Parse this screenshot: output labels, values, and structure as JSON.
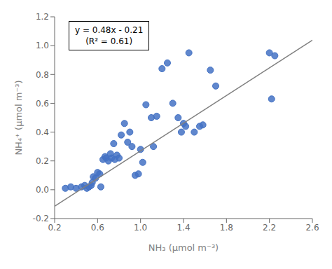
{
  "chart_data": {
    "type": "scatter",
    "xlabel": "NH₃ (μmol m⁻³)",
    "ylabel": "NH₄⁺ (μmol m⁻³)",
    "xlim": [
      0.2,
      2.6
    ],
    "ylim": [
      -0.2,
      1.2
    ],
    "xticks": [
      0.2,
      0.6,
      {
        "value": 1,
        "label": "1.0"
      },
      1.4,
      1.8,
      2.2,
      2.6
    ],
    "yticks": [
      -0.2,
      {
        "value": 0,
        "label": "0.0"
      },
      0.2,
      0.4,
      0.6,
      0.8,
      {
        "value": 1,
        "label": "1.0"
      },
      1.2
    ],
    "grid": false,
    "annotations": [
      "y = 0.48x - 0.21",
      "(R² = 0.61)"
    ],
    "series": [
      {
        "type": "scatter",
        "color": "#4472C4",
        "marker": "circle",
        "x": [
          0.3,
          0.35,
          0.4,
          0.45,
          0.48,
          0.5,
          0.52,
          0.54,
          0.55,
          0.56,
          0.58,
          0.6,
          0.62,
          0.63,
          0.65,
          0.67,
          0.68,
          0.7,
          0.72,
          0.73,
          0.75,
          0.76,
          0.78,
          0.8,
          0.82,
          0.85,
          0.88,
          0.9,
          0.92,
          0.95,
          0.98,
          1.0,
          1.02,
          1.05,
          1.1,
          1.12,
          1.15,
          1.2,
          1.25,
          1.3,
          1.35,
          1.38,
          1.4,
          1.42,
          1.45,
          1.5,
          1.55,
          1.58,
          1.65,
          1.7,
          2.2,
          2.22,
          2.25
        ],
        "values": [
          0.01,
          0.02,
          0.01,
          0.02,
          0.03,
          0.01,
          0.02,
          0.03,
          0.05,
          0.09,
          0.08,
          0.12,
          0.11,
          0.02,
          0.21,
          0.23,
          0.22,
          0.2,
          0.25,
          0.22,
          0.32,
          0.21,
          0.24,
          0.22,
          0.38,
          0.46,
          0.33,
          0.4,
          0.3,
          0.1,
          0.11,
          0.28,
          0.19,
          0.59,
          0.5,
          0.3,
          0.51,
          0.84,
          0.88,
          0.6,
          0.5,
          0.4,
          0.46,
          0.44,
          0.95,
          0.4,
          0.44,
          0.45,
          0.83,
          0.72,
          0.95,
          0.63,
          0.93
        ]
      },
      {
        "type": "line",
        "color": "#808080",
        "line_style": "solid",
        "x": [
          0.2,
          2.6
        ],
        "values": [
          -0.114,
          1.038
        ]
      }
    ]
  }
}
